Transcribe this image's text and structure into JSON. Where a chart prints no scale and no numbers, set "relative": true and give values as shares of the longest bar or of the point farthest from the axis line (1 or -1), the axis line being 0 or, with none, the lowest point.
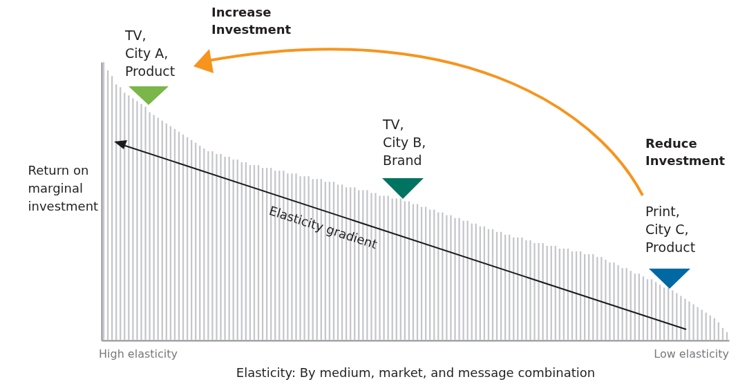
{
  "chart_data": {
    "type": "bar",
    "relative": true,
    "color": "#c5c6ca",
    "xlabel": "Elasticity: By medium, market, and message combination",
    "ylabel": "Return on\nmarginal\ninvestment",
    "annotations": [
      "TV,\nCity A,\nProduct",
      "TV,\nCity B,\nBrand",
      "Print,\nCity C,\nProduct",
      "Increase\nInvestment",
      "Reduce\nInvestment",
      "Elasticity gradient",
      "High elasticity",
      "Low elasticity"
    ],
    "categories": [
      null,
      null,
      null,
      null,
      null,
      null,
      null,
      null,
      null,
      null,
      null,
      null,
      null,
      null,
      null,
      null,
      null,
      null,
      null,
      null,
      null,
      null,
      null,
      null,
      null,
      null,
      null,
      null,
      null,
      null,
      null,
      null,
      null,
      null,
      null,
      null,
      null,
      null,
      null,
      null,
      null,
      null,
      null,
      null,
      null,
      null,
      null,
      null,
      null,
      null,
      null,
      null,
      null,
      null,
      null,
      null,
      null,
      null,
      null,
      null,
      null,
      null,
      null,
      null,
      null,
      null,
      null,
      null,
      null,
      null,
      null,
      null,
      null,
      null,
      null,
      null,
      null,
      null,
      null,
      null,
      null,
      null,
      null,
      null,
      null,
      null,
      null,
      null,
      null,
      null,
      null,
      null,
      null,
      null,
      null,
      null,
      null,
      null,
      null,
      null,
      null,
      null,
      null,
      null,
      null,
      null,
      null,
      null,
      null,
      null,
      null,
      null,
      null,
      null,
      null,
      null,
      null,
      null,
      null,
      null,
      null,
      null,
      null,
      null,
      null,
      null,
      null,
      null,
      null,
      null,
      null,
      null,
      null,
      null,
      null,
      null,
      null,
      null,
      null,
      null,
      null,
      null,
      null,
      null,
      null,
      null,
      null,
      null,
      null,
      null
    ],
    "values": [
      1.0,
      0.97,
      0.95,
      0.92,
      0.91,
      0.89,
      0.88,
      0.87,
      0.86,
      0.85,
      0.84,
      0.82,
      0.81,
      0.8,
      0.79,
      0.78,
      0.77,
      0.76,
      0.75,
      0.74,
      0.73,
      0.72,
      0.71,
      0.7,
      0.69,
      0.68,
      0.68,
      0.67,
      0.67,
      0.66,
      0.66,
      0.65,
      0.65,
      0.64,
      0.64,
      0.63,
      0.63,
      0.63,
      0.62,
      0.62,
      0.62,
      0.61,
      0.61,
      0.61,
      0.6,
      0.6,
      0.6,
      0.59,
      0.59,
      0.59,
      0.58,
      0.58,
      0.58,
      0.57,
      0.57,
      0.57,
      0.56,
      0.56,
      0.55,
      0.55,
      0.55,
      0.54,
      0.54,
      0.54,
      0.53,
      0.53,
      0.52,
      0.52,
      0.52,
      0.51,
      0.51,
      0.51,
      0.5,
      0.5,
      0.49,
      0.49,
      0.48,
      0.48,
      0.47,
      0.47,
      0.46,
      0.46,
      0.45,
      0.45,
      0.44,
      0.44,
      0.43,
      0.43,
      0.42,
      0.42,
      0.41,
      0.41,
      0.4,
      0.4,
      0.39,
      0.39,
      0.38,
      0.38,
      0.37,
      0.37,
      0.37,
      0.36,
      0.36,
      0.35,
      0.35,
      0.35,
      0.34,
      0.34,
      0.34,
      0.33,
      0.33,
      0.33,
      0.32,
      0.32,
      0.32,
      0.31,
      0.31,
      0.31,
      0.3,
      0.3,
      0.29,
      0.28,
      0.28,
      0.27,
      0.26,
      0.26,
      0.25,
      0.24,
      0.24,
      0.23,
      0.22,
      0.22,
      0.21,
      0.2,
      0.19,
      0.19,
      0.18,
      0.17,
      0.16,
      0.15,
      0.14,
      0.13,
      0.12,
      0.11,
      0.1,
      0.09,
      0.08,
      0.065,
      0.045,
      0.03
    ]
  }
}
